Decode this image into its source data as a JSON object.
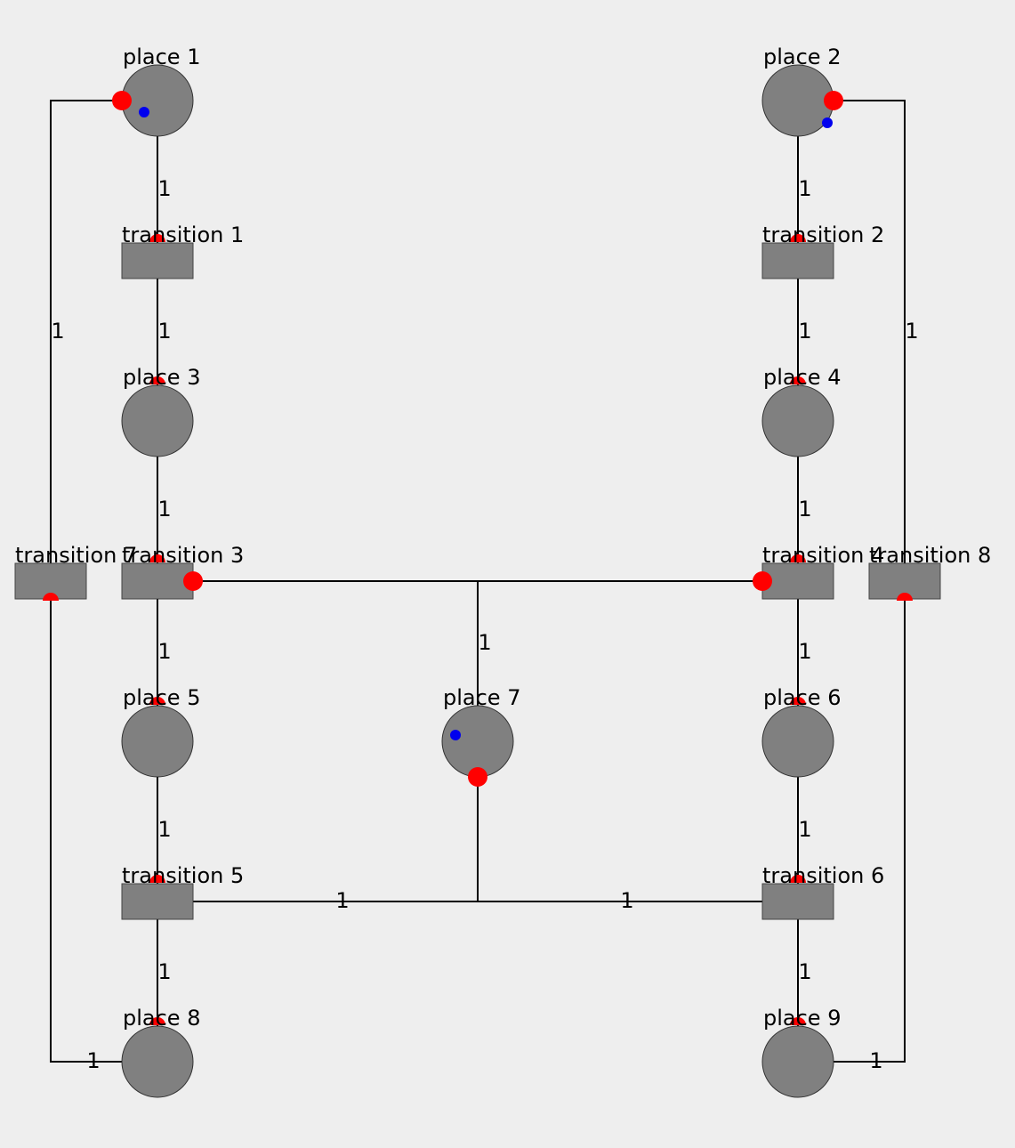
{
  "colors": {
    "background": "#eeeeee",
    "node_fill": "#808080",
    "arc": "#000000",
    "arc_endpoint": "#ff0000",
    "token": "#0000ee"
  },
  "places": [
    {
      "id": "p1",
      "label": "place 1",
      "tokens": 1
    },
    {
      "id": "p2",
      "label": "place 2",
      "tokens": 1
    },
    {
      "id": "p3",
      "label": "place 3",
      "tokens": 0
    },
    {
      "id": "p4",
      "label": "place 4",
      "tokens": 0
    },
    {
      "id": "p5",
      "label": "place 5",
      "tokens": 0
    },
    {
      "id": "p6",
      "label": "place 6",
      "tokens": 0
    },
    {
      "id": "p7",
      "label": "place 7",
      "tokens": 1
    },
    {
      "id": "p8",
      "label": "place 8",
      "tokens": 0
    },
    {
      "id": "p9",
      "label": "place 9",
      "tokens": 0
    }
  ],
  "transitions": [
    {
      "id": "t1",
      "label": "transition 1"
    },
    {
      "id": "t2",
      "label": "transition 2"
    },
    {
      "id": "t3",
      "label": "transition 3"
    },
    {
      "id": "t4",
      "label": "transition 4"
    },
    {
      "id": "t5",
      "label": "transition 5"
    },
    {
      "id": "t6",
      "label": "transition 6"
    },
    {
      "id": "t7",
      "label": "transition 7"
    },
    {
      "id": "t8",
      "label": "transition 8"
    }
  ],
  "arcs": [
    {
      "from": "p1",
      "to": "t1",
      "weight": "1"
    },
    {
      "from": "t1",
      "to": "p3",
      "weight": "1"
    },
    {
      "from": "p3",
      "to": "t3",
      "weight": "1"
    },
    {
      "from": "t3",
      "to": "p5",
      "weight": "1"
    },
    {
      "from": "p5",
      "to": "t5",
      "weight": "1"
    },
    {
      "from": "t5",
      "to": "p8",
      "weight": "1"
    },
    {
      "from": "p8",
      "to": "t7",
      "weight": "1"
    },
    {
      "from": "t7",
      "to": "p1",
      "weight": "1"
    },
    {
      "from": "p2",
      "to": "t2",
      "weight": "1"
    },
    {
      "from": "t2",
      "to": "p4",
      "weight": "1"
    },
    {
      "from": "p4",
      "to": "t4",
      "weight": "1"
    },
    {
      "from": "t4",
      "to": "p6",
      "weight": "1"
    },
    {
      "from": "p6",
      "to": "t6",
      "weight": "1"
    },
    {
      "from": "t6",
      "to": "p9",
      "weight": "1"
    },
    {
      "from": "p9",
      "to": "t8",
      "weight": "1"
    },
    {
      "from": "t8",
      "to": "p2",
      "weight": "1"
    },
    {
      "from": "p7",
      "to": "t3",
      "weight": "1"
    },
    {
      "from": "p7",
      "to": "t4",
      "weight": "1"
    },
    {
      "from": "t5",
      "to": "p7",
      "weight": "1"
    },
    {
      "from": "t6",
      "to": "p7",
      "weight": "1"
    }
  ]
}
